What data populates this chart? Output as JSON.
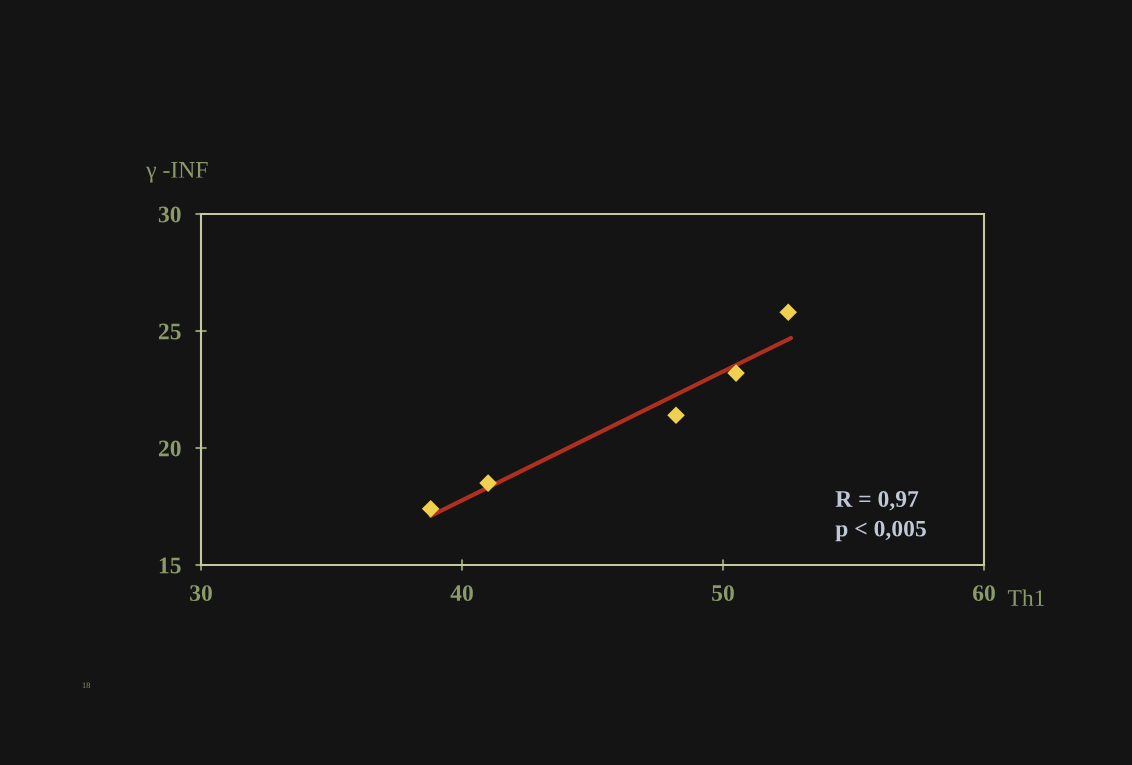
{
  "chart_data": {
    "type": "scatter",
    "xlabel": "Th1",
    "ylabel": "γ -INF",
    "xlim": [
      30,
      60
    ],
    "xticks": [
      30,
      40,
      50,
      60
    ],
    "ylim": [
      15,
      30
    ],
    "yticks": [
      15,
      20,
      25,
      30
    ],
    "grid": false,
    "series": [
      {
        "marker": "diamond",
        "color": "#f0d050",
        "x": [
          38.8,
          41.0,
          48.2,
          50.5,
          52.5
        ],
        "values": [
          17.4,
          18.5,
          21.4,
          23.2,
          25.8
        ]
      },
      {
        "type": "line",
        "color": "#b03020",
        "x": [
          38.8,
          52.6
        ],
        "values": [
          17.1,
          24.7
        ],
        "line_style": "solid",
        "marker": "none"
      }
    ],
    "annotations": [
      {
        "text": "R = 0,97\np < 0,005"
      },
      {
        "text": "18"
      }
    ]
  }
}
